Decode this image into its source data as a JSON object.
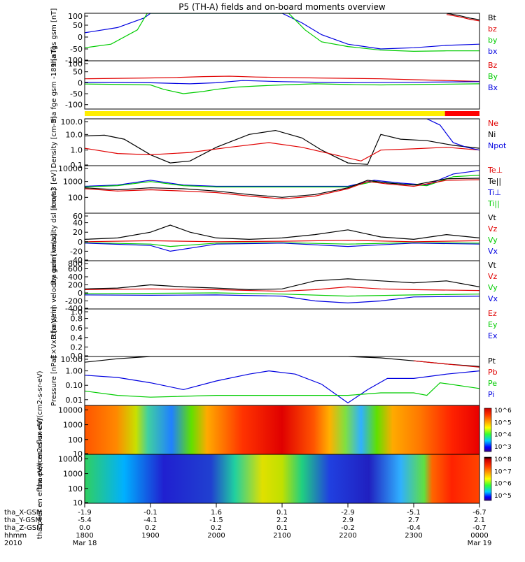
{
  "title": "P5 (TH-A) fields and on-board moments overview",
  "colors": {
    "black": "#000000",
    "red": "#e00000",
    "green": "#00cc00",
    "blue": "#0000e0",
    "yellow": "#ffee00",
    "bar_red": "#ff0000"
  },
  "status_bar": {
    "yellow_until": 23.475
  },
  "chart_data": [
    {
      "type": "line",
      "ylabel": "tha fgs gsm [nT]",
      "ylim": [
        -100,
        100
      ],
      "yticks": [
        "100",
        "50",
        "0",
        "-50",
        "-100"
      ],
      "legend": [
        {
          "name": "Bt",
          "color": "#000000"
        },
        {
          "name": "bz",
          "color": "#e00000"
        },
        {
          "name": "by",
          "color": "#00cc00"
        },
        {
          "name": "bx",
          "color": "#0000e0"
        }
      ],
      "series": [
        {
          "name": "bx",
          "x": [
            18.0,
            18.5,
            18.9,
            19.0,
            21.0,
            21.3,
            21.6,
            22.0,
            22.5,
            23.0,
            23.5,
            24.0
          ],
          "y": [
            18,
            40,
            80,
            100,
            100,
            60,
            10,
            -30,
            -50,
            -45,
            -35,
            -30
          ]
        },
        {
          "name": "by",
          "x": [
            18.0,
            18.4,
            18.8,
            18.95,
            20.25,
            21.1,
            21.35,
            21.6,
            22.0,
            22.5,
            23.0,
            23.5,
            24.0
          ],
          "y": [
            -45,
            -30,
            30,
            100,
            100,
            100,
            30,
            -20,
            -40,
            -55,
            -60,
            -58,
            -58
          ]
        },
        {
          "name": "bz",
          "x": [
            23.5,
            23.7,
            23.85,
            24.0
          ],
          "y": [
            95,
            85,
            75,
            68
          ]
        },
        {
          "name": "Bt",
          "x": [
            23.5,
            23.7,
            23.85,
            24.0
          ],
          "y": [
            100,
            90,
            80,
            73
          ]
        }
      ]
    },
    {
      "type": "line",
      "ylabel": "tha fge gsm -189 [nT]",
      "ylim": [
        -120,
        100
      ],
      "yticks": [
        "100",
        "50",
        "0",
        "-50",
        "-100"
      ],
      "legend": [
        {
          "name": "Bz",
          "color": "#e00000"
        },
        {
          "name": "By",
          "color": "#00cc00"
        },
        {
          "name": "Bx",
          "color": "#0000e0"
        }
      ],
      "series": [
        {
          "name": "Bz",
          "x": [
            18.0,
            18.5,
            19.0,
            19.4,
            19.8,
            20.2,
            20.6,
            21.0,
            21.5,
            22.0,
            22.5,
            23.0,
            23.5,
            24.0
          ],
          "y": [
            18,
            20,
            22,
            24,
            28,
            30,
            26,
            24,
            22,
            20,
            18,
            14,
            10,
            6
          ]
        },
        {
          "name": "By",
          "x": [
            18.0,
            18.6,
            19.0,
            19.2,
            19.5,
            19.8,
            20.0,
            20.3,
            20.6,
            21.0,
            21.5,
            22.0,
            22.5,
            23.0,
            24.0
          ],
          "y": [
            -6,
            -8,
            -10,
            -30,
            -50,
            -40,
            -30,
            -20,
            -15,
            -10,
            -5,
            -8,
            -10,
            -8,
            -5
          ]
        },
        {
          "name": "Bx",
          "x": [
            18.0,
            19.0,
            19.6,
            20.0,
            20.4,
            21.0,
            22.0,
            23.0,
            24.0
          ],
          "y": [
            2,
            0,
            -5,
            0,
            10,
            5,
            0,
            2,
            5
          ]
        }
      ]
    },
    {
      "type": "line",
      "ylabel": "Density [cm-3]",
      "scale": "log",
      "ylim": [
        0.1,
        100
      ],
      "yticks": [
        "100.0",
        "10.0",
        "1.0",
        "0.1"
      ],
      "legend": [
        {
          "name": "Ne",
          "color": "#e00000"
        },
        {
          "name": "Ni",
          "color": "#000000"
        },
        {
          "name": "Npot",
          "color": "#0000e0"
        }
      ],
      "series": [
        {
          "name": "Ni",
          "x": [
            18.0,
            18.3,
            18.6,
            19.0,
            19.3,
            19.6,
            20.0,
            20.5,
            20.9,
            21.3,
            21.6,
            22.0,
            22.3,
            22.5,
            22.8,
            23.2,
            23.6,
            24.0
          ],
          "y": [
            8,
            9,
            5,
            0.5,
            0.15,
            0.2,
            1.5,
            10,
            18,
            6,
            1,
            0.15,
            0.12,
            10,
            5,
            4,
            2,
            1.3
          ]
        },
        {
          "name": "Ne",
          "x": [
            18.0,
            18.5,
            19.0,
            19.6,
            20.2,
            20.8,
            21.3,
            21.8,
            22.2,
            22.5,
            23.0,
            23.5,
            24.0
          ],
          "y": [
            1.3,
            0.6,
            0.5,
            0.7,
            1.5,
            3,
            1.5,
            0.5,
            0.2,
            1,
            1.2,
            1.5,
            1
          ]
        },
        {
          "name": "Npot",
          "x": [
            23.2,
            23.4,
            23.6,
            23.8,
            24.0
          ],
          "y": [
            100,
            40,
            3,
            1.5,
            1
          ]
        }
      ]
    },
    {
      "type": "line",
      "ylabel": "mom3 [eV]",
      "scale": "log",
      "ylim": [
        10,
        10000
      ],
      "yticks": [
        "10000",
        "1000",
        "100"
      ],
      "legend": [
        {
          "name": "Te⊥",
          "color": "#e00000"
        },
        {
          "name": "Te||",
          "color": "#000000"
        },
        {
          "name": "Ti⊥",
          "color": "#0000e0"
        },
        {
          "name": "Ti||",
          "color": "#00cc00"
        }
      ],
      "series": [
        {
          "name": "Ti⊥",
          "x": [
            18.0,
            18.5,
            19.0,
            19.5,
            20.0,
            21.0,
            22.0,
            22.4,
            22.8,
            23.2,
            23.6,
            24.0
          ],
          "y": [
            500,
            600,
            1200,
            600,
            500,
            500,
            500,
            1200,
            800,
            600,
            3000,
            5000
          ]
        },
        {
          "name": "Ti||",
          "x": [
            18.0,
            18.5,
            19.0,
            19.5,
            20.0,
            21.0,
            22.0,
            22.4,
            22.8,
            23.2,
            23.6,
            24.0
          ],
          "y": [
            450,
            550,
            1000,
            550,
            450,
            450,
            450,
            1000,
            700,
            550,
            2000,
            2500
          ]
        },
        {
          "name": "Te||",
          "x": [
            18.0,
            18.5,
            19.0,
            19.5,
            20.0,
            20.5,
            21.0,
            21.5,
            22.0,
            22.3,
            22.6,
            23.0,
            23.5,
            24.0
          ],
          "y": [
            400,
            300,
            400,
            350,
            250,
            150,
            100,
            150,
            400,
            1200,
            800,
            600,
            1500,
            1600
          ]
        },
        {
          "name": "Te⊥",
          "x": [
            18.0,
            18.5,
            19.0,
            19.5,
            20.0,
            20.5,
            21.0,
            21.5,
            22.0,
            22.3,
            22.6,
            23.0,
            23.5,
            24.0
          ],
          "y": [
            350,
            250,
            300,
            250,
            200,
            120,
            80,
            120,
            350,
            1000,
            700,
            500,
            1200,
            1300
          ]
        }
      ]
    },
    {
      "type": "line",
      "ylabel": "tha peim velocity dsl [km/s]",
      "ylim": [
        -40,
        60
      ],
      "yticks": [
        "60",
        "40",
        "20",
        "0",
        "-20",
        "-40"
      ],
      "legend": [
        {
          "name": "Vt",
          "color": "#000000"
        },
        {
          "name": "Vz",
          "color": "#e00000"
        },
        {
          "name": "Vy",
          "color": "#00cc00"
        },
        {
          "name": "Vx",
          "color": "#0000e0"
        }
      ],
      "series": [
        {
          "name": "Vt",
          "x": [
            18.0,
            18.5,
            19.0,
            19.3,
            19.6,
            20.0,
            20.5,
            21.0,
            21.5,
            22.0,
            22.5,
            23.0,
            23.5,
            24.0
          ],
          "y": [
            5,
            8,
            20,
            35,
            20,
            8,
            5,
            8,
            15,
            25,
            10,
            5,
            15,
            8
          ]
        },
        {
          "name": "Vz",
          "x": [
            18.0,
            19.0,
            20.0,
            21.0,
            22.0,
            23.0,
            24.0
          ],
          "y": [
            0,
            2,
            0,
            1,
            3,
            0,
            2
          ]
        },
        {
          "name": "Vy",
          "x": [
            18.0,
            19.0,
            19.3,
            20.0,
            21.0,
            22.0,
            23.0,
            24.0
          ],
          "y": [
            -2,
            -5,
            -10,
            -3,
            -2,
            -5,
            -2,
            -3
          ]
        },
        {
          "name": "Vx",
          "x": [
            18.0,
            19.0,
            19.3,
            20.0,
            21.0,
            22.0,
            23.0,
            24.0
          ],
          "y": [
            -3,
            -8,
            -20,
            -5,
            -3,
            -10,
            -3,
            -5
          ]
        }
      ]
    },
    {
      "type": "line",
      "ylabel": "tha peim velocity gsm [km/s]",
      "ylim": [
        -400,
        800
      ],
      "yticks": [
        "800",
        "600",
        "400",
        "200",
        "0",
        "-200",
        "-400"
      ],
      "legend": [
        {
          "name": "Vt",
          "color": "#000000"
        },
        {
          "name": "Vz",
          "color": "#e00000"
        },
        {
          "name": "Vy",
          "color": "#00cc00"
        },
        {
          "name": "Vx",
          "color": "#0000e0"
        }
      ],
      "series": [
        {
          "name": "Vt",
          "x": [
            18.0,
            18.5,
            19.0,
            19.5,
            20.0,
            20.5,
            21.0,
            21.5,
            22.0,
            22.5,
            23.0,
            23.5,
            24.0
          ],
          "y": [
            100,
            120,
            200,
            150,
            120,
            80,
            100,
            300,
            350,
            300,
            250,
            300,
            150
          ]
        },
        {
          "name": "Vz",
          "x": [
            18.0,
            19.0,
            20.0,
            21.0,
            21.5,
            22.0,
            22.5,
            23.0,
            24.0
          ],
          "y": [
            80,
            100,
            80,
            40,
            80,
            150,
            100,
            80,
            60
          ]
        },
        {
          "name": "Vy",
          "x": [
            18.0,
            19.0,
            20.0,
            21.0,
            22.0,
            23.0,
            24.0
          ],
          "y": [
            -20,
            -10,
            0,
            -30,
            -80,
            -50,
            -30
          ]
        },
        {
          "name": "Vx",
          "x": [
            18.0,
            19.0,
            20.0,
            21.0,
            21.5,
            22.0,
            22.5,
            23.0,
            24.0
          ],
          "y": [
            -50,
            -60,
            -50,
            -80,
            -200,
            -250,
            -200,
            -100,
            -80
          ]
        }
      ]
    },
    {
      "type": "line",
      "ylabel": "E×VxB [mV/m]",
      "ylim": [
        0,
        1
      ],
      "yticks": [
        "1.0",
        "0.8",
        "0.6",
        "0.4",
        "0.2",
        "0.0"
      ],
      "legend": [
        {
          "name": "Ez",
          "color": "#e00000"
        },
        {
          "name": "Ey",
          "color": "#00cc00"
        },
        {
          "name": "Ex",
          "color": "#0000e0"
        }
      ],
      "series": []
    },
    {
      "type": "line",
      "ylabel": "Pressure [nPa]",
      "scale": "log",
      "ylim": [
        0.004,
        10
      ],
      "yticks": [
        "10.00",
        "1.00",
        "0.10",
        "0.01"
      ],
      "legend": [
        {
          "name": "Pt",
          "color": "#000000"
        },
        {
          "name": "Pb",
          "color": "#e00000"
        },
        {
          "name": "Pe",
          "color": "#00cc00"
        },
        {
          "name": "Pi",
          "color": "#0000e0"
        }
      ],
      "series": [
        {
          "name": "Pt",
          "x": [
            18.0,
            18.5,
            19.0,
            22.0,
            22.5,
            23.0,
            23.5,
            24.0
          ],
          "y": [
            4,
            7,
            10,
            10,
            8,
            5,
            3,
            2
          ]
        },
        {
          "name": "Pb",
          "x": [
            23.0,
            23.5,
            24.0
          ],
          "y": [
            5,
            3,
            1.8
          ]
        },
        {
          "name": "Pi",
          "x": [
            18.0,
            18.5,
            19.0,
            19.5,
            20.0,
            20.5,
            20.8,
            21.2,
            21.6,
            22.0,
            22.3,
            22.6,
            23.0,
            23.5,
            24.0
          ],
          "y": [
            0.5,
            0.35,
            0.15,
            0.05,
            0.2,
            0.6,
            1,
            0.6,
            0.12,
            0.006,
            0.05,
            0.3,
            0.3,
            0.6,
            1
          ]
        },
        {
          "name": "Pe",
          "x": [
            18.0,
            18.5,
            19.0,
            20.0,
            21.0,
            22.0,
            22.5,
            23.0,
            23.2,
            23.4,
            24.0
          ],
          "y": [
            0.04,
            0.02,
            0.015,
            0.02,
            0.02,
            0.02,
            0.03,
            0.03,
            0.02,
            0.15,
            0.06
          ]
        }
      ]
    },
    {
      "type": "heatmap",
      "ylabel": "tha peir en eflux eV/(cm2-s-sr-eV)",
      "scale": "log",
      "ylim": [
        10,
        20000
      ],
      "yticks": [
        "10000",
        "1000",
        "100",
        "10"
      ],
      "colorbar": {
        "scale": "log",
        "min": 1000,
        "max": 1000000,
        "ticks": [
          "10^6",
          "10^5",
          "10^4",
          "10^3"
        ]
      }
    },
    {
      "type": "heatmap",
      "ylabel": "tha peer en eflux eV/(cm2-s-sr-eV)",
      "scale": "log",
      "ylim": [
        10,
        20000
      ],
      "yticks": [
        "10000",
        "1000",
        "100",
        "10"
      ],
      "colorbar": {
        "scale": "log",
        "min": 100000,
        "max": 100000000,
        "ticks": [
          "10^8",
          "10^7",
          "10^6",
          "10^5"
        ]
      }
    }
  ],
  "x_axis": {
    "row_labels": [
      "tha_X-GSM",
      "tha_Y-GSM",
      "tha_Z-GSM",
      "hhmm",
      "2010"
    ],
    "ticks": [
      {
        "x": 18.0,
        "vals": [
          "-1.9",
          "-5.4",
          "0.0",
          "1800",
          "Mar 18"
        ]
      },
      {
        "x": 19.0,
        "vals": [
          "-0.1",
          "-4.1",
          "0.2",
          "1900",
          ""
        ]
      },
      {
        "x": 20.0,
        "vals": [
          "1.6",
          "-1.5",
          "0.2",
          "2000",
          ""
        ]
      },
      {
        "x": 21.0,
        "vals": [
          "0.1",
          "2.2",
          "0.1",
          "2100",
          ""
        ]
      },
      {
        "x": 22.0,
        "vals": [
          "-2.9",
          "2.9",
          "-0.2",
          "2200",
          ""
        ]
      },
      {
        "x": 23.0,
        "vals": [
          "-5.1",
          "2.7",
          "-0.4",
          "2300",
          ""
        ]
      },
      {
        "x": 24.0,
        "vals": [
          "-6.7",
          "2.1",
          "-0.7",
          "0000",
          "Mar 19"
        ]
      }
    ]
  }
}
